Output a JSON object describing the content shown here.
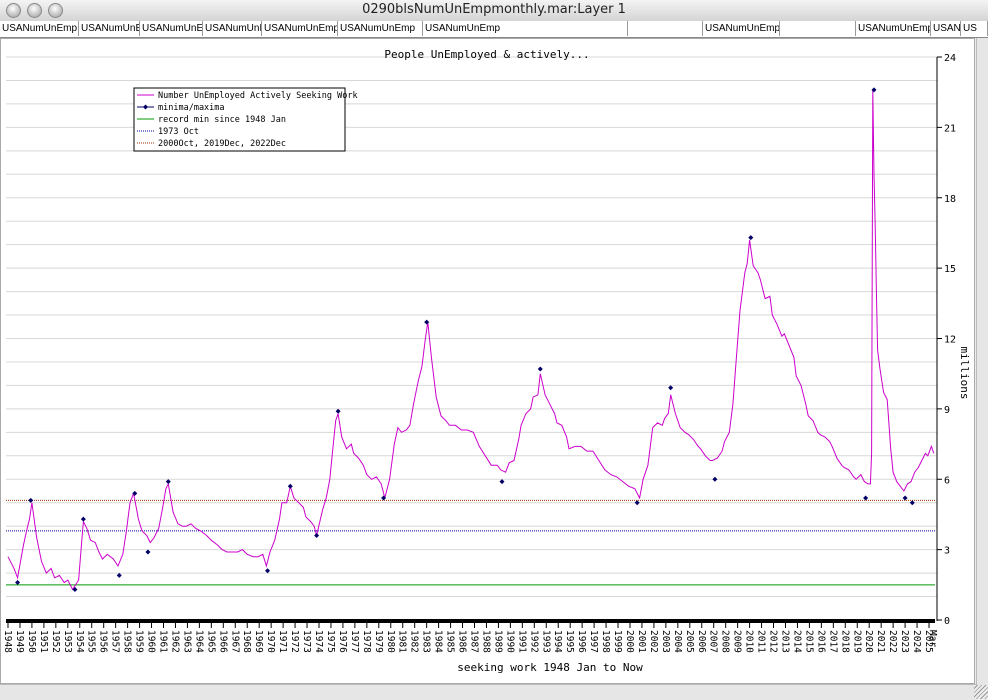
{
  "window": {
    "title": "0290blsNumUnEmpmonthly.mar:Layer 1"
  },
  "tabs": [
    "USANumUnEmp",
    "USANumUnE",
    "USANumUnEm",
    "USANumUnE",
    "USANumUnEmp",
    "USANumUnEmp",
    "USANumUnEmp",
    "",
    "USANumUnEmp",
    "",
    "USANumUnEmp",
    "USANumUnEmp",
    "US"
  ],
  "chart_data": {
    "type": "line",
    "title": "People UnEmployed & actively...",
    "xlabel": "seeking work 1948 Jan to Now",
    "ylabel": "millions",
    "ylim": [
      0,
      24
    ],
    "y_ticks": [
      "0",
      "3",
      "6",
      "9",
      "12",
      "15",
      "18",
      "21",
      "24"
    ],
    "x_tick_labels": [
      "1948",
      "1949",
      "1950",
      "1951",
      "1952",
      "1953",
      "1954",
      "1955",
      "1956",
      "1957",
      "1958",
      "1959",
      "1960",
      "1961",
      "1962",
      "1963",
      "1964",
      "1965",
      "1966",
      "1967",
      "1968",
      "1969",
      "1970",
      "1971",
      "1972",
      "1973",
      "1974",
      "1975",
      "1976",
      "1977",
      "1978",
      "1979",
      "1980",
      "1981",
      "1982",
      "1983",
      "1984",
      "1985",
      "1986",
      "1987",
      "1988",
      "1989",
      "1990",
      "1991",
      "1992",
      "1993",
      "1994",
      "1995",
      "1996",
      "1997",
      "1998",
      "1999",
      "2000",
      "2001",
      "2002",
      "2003",
      "2004",
      "2005",
      "2006",
      "2007",
      "2008",
      "2009",
      "2010",
      "2011",
      "2012",
      "2013",
      "2014",
      "2015",
      "2016",
      "2017",
      "2018",
      "2019",
      "2020",
      "2021",
      "2022",
      "2023",
      "2024",
      "2025",
      "Mar"
    ],
    "legend": {
      "placement": "top-left",
      "entries": [
        {
          "label": "Number UnEmployed Actively Seeking Work",
          "color": "#cc00cc",
          "style": "line"
        },
        {
          "label": "minima/maxima",
          "color": "#000066",
          "style": "marker"
        },
        {
          "label": "record min since 1948 Jan",
          "color": "#009900",
          "style": "line"
        },
        {
          "label": "1973 Oct",
          "color": "#000099",
          "style": "dotted"
        },
        {
          "label": "2000Oct, 2019Dec, 2022Dec",
          "color": "#993300",
          "style": "dotted"
        }
      ]
    },
    "reference_lines": [
      {
        "value": 1.5,
        "color": "#009900"
      },
      {
        "value": 3.8,
        "color": "#000099"
      },
      {
        "value": 5.1,
        "color": "#993300"
      }
    ],
    "series": [
      {
        "name": "Number UnEmployed Actively Seeking Work",
        "color": "#cc00cc",
        "points": [
          [
            1948.0,
            2.7
          ],
          [
            1948.5,
            2.2
          ],
          [
            1948.8,
            1.8
          ],
          [
            1949.3,
            3.2
          ],
          [
            1949.6,
            3.9
          ],
          [
            1949.8,
            4.3
          ],
          [
            1950.0,
            5.0
          ],
          [
            1950.4,
            3.5
          ],
          [
            1950.8,
            2.5
          ],
          [
            1951.2,
            2.0
          ],
          [
            1951.6,
            2.2
          ],
          [
            1951.9,
            1.8
          ],
          [
            1952.3,
            1.9
          ],
          [
            1952.7,
            1.6
          ],
          [
            1953.0,
            1.7
          ],
          [
            1953.4,
            1.3
          ],
          [
            1953.9,
            1.7
          ],
          [
            1954.2,
            3.6
          ],
          [
            1954.3,
            4.2
          ],
          [
            1954.6,
            3.9
          ],
          [
            1954.9,
            3.4
          ],
          [
            1955.3,
            3.3
          ],
          [
            1955.6,
            2.9
          ],
          [
            1955.9,
            2.6
          ],
          [
            1956.3,
            2.8
          ],
          [
            1956.8,
            2.6
          ],
          [
            1957.2,
            2.3
          ],
          [
            1957.6,
            2.8
          ],
          [
            1957.9,
            3.8
          ],
          [
            1958.2,
            5.0
          ],
          [
            1958.5,
            5.4
          ],
          [
            1958.9,
            4.3
          ],
          [
            1959.2,
            3.8
          ],
          [
            1959.6,
            3.6
          ],
          [
            1959.9,
            3.3
          ],
          [
            1960.2,
            3.5
          ],
          [
            1960.6,
            3.9
          ],
          [
            1960.9,
            4.7
          ],
          [
            1961.2,
            5.6
          ],
          [
            1961.4,
            5.8
          ],
          [
            1961.8,
            4.6
          ],
          [
            1962.2,
            4.1
          ],
          [
            1962.6,
            4.0
          ],
          [
            1962.9,
            4.0
          ],
          [
            1963.3,
            4.1
          ],
          [
            1963.7,
            3.9
          ],
          [
            1964.1,
            3.8
          ],
          [
            1964.6,
            3.6
          ],
          [
            1965.0,
            3.4
          ],
          [
            1965.5,
            3.2
          ],
          [
            1965.9,
            3.0
          ],
          [
            1966.3,
            2.9
          ],
          [
            1966.8,
            2.9
          ],
          [
            1967.2,
            2.9
          ],
          [
            1967.6,
            3.0
          ],
          [
            1968.0,
            2.8
          ],
          [
            1968.5,
            2.7
          ],
          [
            1968.9,
            2.7
          ],
          [
            1969.3,
            2.8
          ],
          [
            1969.6,
            2.3
          ],
          [
            1969.9,
            2.9
          ],
          [
            1970.3,
            3.4
          ],
          [
            1970.7,
            4.3
          ],
          [
            1970.9,
            5.0
          ],
          [
            1971.3,
            5.0
          ],
          [
            1971.6,
            5.7
          ],
          [
            1971.9,
            5.2
          ],
          [
            1972.3,
            5.0
          ],
          [
            1972.7,
            4.8
          ],
          [
            1972.9,
            4.4
          ],
          [
            1973.3,
            4.2
          ],
          [
            1973.6,
            4.0
          ],
          [
            1973.8,
            3.6
          ],
          [
            1974.3,
            4.7
          ],
          [
            1974.6,
            5.2
          ],
          [
            1974.9,
            6.0
          ],
          [
            1975.2,
            7.5
          ],
          [
            1975.4,
            8.5
          ],
          [
            1975.6,
            8.8
          ],
          [
            1975.9,
            7.8
          ],
          [
            1976.3,
            7.3
          ],
          [
            1976.7,
            7.5
          ],
          [
            1976.9,
            7.1
          ],
          [
            1977.3,
            6.9
          ],
          [
            1977.7,
            6.6
          ],
          [
            1978.0,
            6.2
          ],
          [
            1978.4,
            6.0
          ],
          [
            1978.8,
            6.1
          ],
          [
            1979.2,
            5.8
          ],
          [
            1979.5,
            5.2
          ],
          [
            1979.9,
            6.0
          ],
          [
            1980.3,
            7.5
          ],
          [
            1980.6,
            8.2
          ],
          [
            1980.9,
            8.0
          ],
          [
            1981.3,
            8.1
          ],
          [
            1981.6,
            8.3
          ],
          [
            1981.9,
            9.2
          ],
          [
            1982.3,
            10.2
          ],
          [
            1982.6,
            10.8
          ],
          [
            1982.9,
            12.0
          ],
          [
            1983.1,
            12.7
          ],
          [
            1983.4,
            11.2
          ],
          [
            1983.8,
            9.5
          ],
          [
            1984.2,
            8.7
          ],
          [
            1984.6,
            8.5
          ],
          [
            1984.9,
            8.3
          ],
          [
            1985.4,
            8.3
          ],
          [
            1985.9,
            8.1
          ],
          [
            1986.4,
            8.1
          ],
          [
            1986.9,
            8.0
          ],
          [
            1987.4,
            7.4
          ],
          [
            1987.9,
            7.0
          ],
          [
            1988.4,
            6.6
          ],
          [
            1988.9,
            6.6
          ],
          [
            1989.2,
            6.4
          ],
          [
            1989.6,
            6.3
          ],
          [
            1989.9,
            6.7
          ],
          [
            1990.3,
            6.8
          ],
          [
            1990.7,
            7.7
          ],
          [
            1990.9,
            8.3
          ],
          [
            1991.3,
            8.8
          ],
          [
            1991.7,
            9.0
          ],
          [
            1991.9,
            9.5
          ],
          [
            1992.3,
            9.6
          ],
          [
            1992.5,
            10.5
          ],
          [
            1992.9,
            9.6
          ],
          [
            1993.3,
            9.2
          ],
          [
            1993.7,
            8.8
          ],
          [
            1993.9,
            8.4
          ],
          [
            1994.3,
            8.3
          ],
          [
            1994.7,
            7.8
          ],
          [
            1994.9,
            7.3
          ],
          [
            1995.4,
            7.4
          ],
          [
            1995.9,
            7.4
          ],
          [
            1996.4,
            7.2
          ],
          [
            1996.9,
            7.2
          ],
          [
            1997.4,
            6.8
          ],
          [
            1997.9,
            6.4
          ],
          [
            1998.4,
            6.2
          ],
          [
            1998.9,
            6.1
          ],
          [
            1999.4,
            5.9
          ],
          [
            1999.9,
            5.7
          ],
          [
            2000.4,
            5.6
          ],
          [
            2000.8,
            5.2
          ],
          [
            2001.1,
            6.0
          ],
          [
            2001.5,
            6.6
          ],
          [
            2001.9,
            8.2
          ],
          [
            2002.3,
            8.4
          ],
          [
            2002.7,
            8.3
          ],
          [
            2002.9,
            8.6
          ],
          [
            2003.2,
            8.8
          ],
          [
            2003.4,
            9.6
          ],
          [
            2003.8,
            8.8
          ],
          [
            2004.2,
            8.2
          ],
          [
            2004.6,
            8.0
          ],
          [
            2004.9,
            7.9
          ],
          [
            2005.3,
            7.7
          ],
          [
            2005.7,
            7.4
          ],
          [
            2005.9,
            7.3
          ],
          [
            2006.3,
            7.0
          ],
          [
            2006.7,
            6.8
          ],
          [
            2006.9,
            6.8
          ],
          [
            2007.3,
            6.9
          ],
          [
            2007.7,
            7.2
          ],
          [
            2007.9,
            7.6
          ],
          [
            2008.3,
            8.0
          ],
          [
            2008.6,
            9.2
          ],
          [
            2008.9,
            11.2
          ],
          [
            2009.2,
            13.2
          ],
          [
            2009.6,
            14.8
          ],
          [
            2009.8,
            15.2
          ],
          [
            2010.0,
            16.2
          ],
          [
            2010.3,
            15.1
          ],
          [
            2010.7,
            14.8
          ],
          [
            2010.9,
            14.5
          ],
          [
            2011.3,
            13.7
          ],
          [
            2011.7,
            13.8
          ],
          [
            2011.9,
            13.0
          ],
          [
            2012.3,
            12.6
          ],
          [
            2012.7,
            12.1
          ],
          [
            2012.9,
            12.2
          ],
          [
            2013.3,
            11.7
          ],
          [
            2013.7,
            11.2
          ],
          [
            2013.9,
            10.4
          ],
          [
            2014.3,
            10.0
          ],
          [
            2014.7,
            9.2
          ],
          [
            2014.9,
            8.7
          ],
          [
            2015.3,
            8.5
          ],
          [
            2015.7,
            8.0
          ],
          [
            2015.9,
            7.9
          ],
          [
            2016.3,
            7.8
          ],
          [
            2016.7,
            7.6
          ],
          [
            2016.9,
            7.4
          ],
          [
            2017.3,
            6.9
          ],
          [
            2017.7,
            6.6
          ],
          [
            2017.9,
            6.5
          ],
          [
            2018.3,
            6.4
          ],
          [
            2018.7,
            6.1
          ],
          [
            2018.9,
            6.0
          ],
          [
            2019.3,
            6.2
          ],
          [
            2019.6,
            5.9
          ],
          [
            2019.9,
            5.8
          ],
          [
            2020.1,
            5.8
          ],
          [
            2020.2,
            7.1
          ],
          [
            2020.3,
            22.6
          ],
          [
            2020.4,
            19.0
          ],
          [
            2020.5,
            16.8
          ],
          [
            2020.6,
            14.0
          ],
          [
            2020.7,
            11.5
          ],
          [
            2020.9,
            10.7
          ],
          [
            2021.2,
            9.7
          ],
          [
            2021.5,
            9.4
          ],
          [
            2021.8,
            7.3
          ],
          [
            2022.0,
            6.3
          ],
          [
            2022.3,
            5.9
          ],
          [
            2022.6,
            5.7
          ],
          [
            2022.9,
            5.5
          ],
          [
            2023.2,
            5.8
          ],
          [
            2023.5,
            5.9
          ],
          [
            2023.8,
            6.3
          ],
          [
            2024.1,
            6.5
          ],
          [
            2024.4,
            6.8
          ],
          [
            2024.7,
            7.1
          ],
          [
            2024.9,
            7.0
          ],
          [
            2025.2,
            7.4
          ],
          [
            2025.4,
            7.1
          ]
        ]
      }
    ],
    "extrema": [
      [
        1948.8,
        1.6
      ],
      [
        1949.9,
        5.1
      ],
      [
        1953.6,
        1.3
      ],
      [
        1954.3,
        4.3
      ],
      [
        1957.3,
        1.9
      ],
      [
        1958.6,
        5.4
      ],
      [
        1959.7,
        2.9
      ],
      [
        1961.4,
        5.9
      ],
      [
        1969.7,
        2.1
      ],
      [
        1971.6,
        5.7
      ],
      [
        1973.8,
        3.6
      ],
      [
        1975.6,
        8.9
      ],
      [
        1979.4,
        5.2
      ],
      [
        1983.0,
        12.7
      ],
      [
        1989.3,
        5.9
      ],
      [
        1992.5,
        10.7
      ],
      [
        2000.6,
        5.0
      ],
      [
        2003.4,
        9.9
      ],
      [
        2007.1,
        6.0
      ],
      [
        2010.1,
        16.3
      ],
      [
        2019.7,
        5.2
      ],
      [
        2020.4,
        22.6
      ],
      [
        2023.0,
        5.2
      ],
      [
        2023.6,
        5.0
      ]
    ]
  }
}
